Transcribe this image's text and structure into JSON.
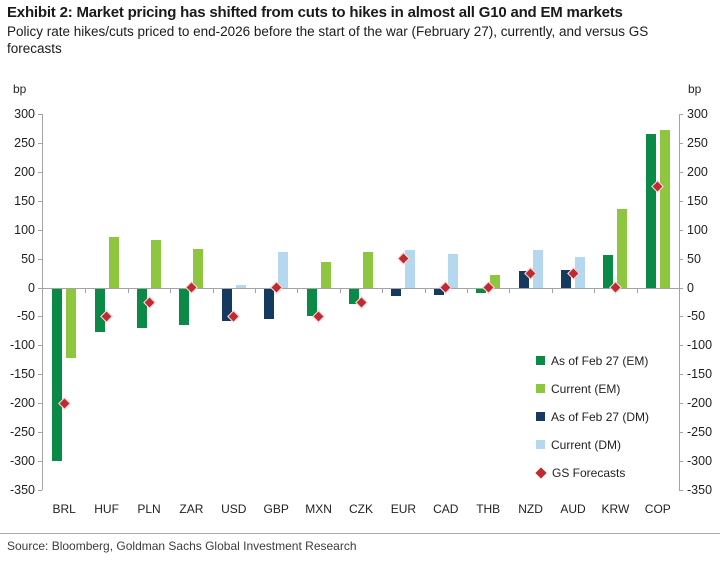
{
  "header": {
    "title": "Exhibit 2: Market pricing has shifted from cuts to hikes in almost all G10 and EM markets",
    "subtitle": "Policy rate hikes/cuts priced to end-2026 before the start of the war (February 27), currently, and versus GS forecasts"
  },
  "footer": {
    "source": "Source: Bloomberg, Goldman Sachs Global Investment Research"
  },
  "colors": {
    "em_feb27": "#0a8a46",
    "em_current": "#8ec63f",
    "dm_feb27": "#163a5f",
    "dm_current": "#b5d8ee",
    "gs_forecast": "#c02b31",
    "axis": "#a3a3a3",
    "text": "#1f1f1f"
  },
  "chart_data": {
    "type": "bar",
    "unit": "bp",
    "title": "Policy rate hikes/cuts priced to end-2026 (bp)",
    "ylim": [
      -350,
      300
    ],
    "ytick_step": 50,
    "grid": false,
    "legend_position": "inside-right-bottom",
    "categories": [
      "BRL",
      "HUF",
      "PLN",
      "ZAR",
      "USD",
      "GBP",
      "MXN",
      "CZK",
      "EUR",
      "CAD",
      "THB",
      "NZD",
      "AUD",
      "KRW",
      "COP"
    ],
    "category_market": [
      "EM",
      "EM",
      "EM",
      "EM",
      "DM",
      "DM",
      "EM",
      "EM",
      "DM",
      "DM",
      "EM",
      "DM",
      "DM",
      "EM",
      "EM"
    ],
    "series": [
      {
        "name": "As of Feb 27 (EM)",
        "type": "bar",
        "slot": "left",
        "color": "#0a8a46",
        "values": [
          -300,
          -77,
          -70,
          -65,
          null,
          null,
          -49,
          -29,
          null,
          null,
          -9,
          null,
          null,
          56,
          265
        ]
      },
      {
        "name": "Current (EM)",
        "type": "bar",
        "slot": "right",
        "color": "#8ec63f",
        "values": [
          -122,
          87,
          82,
          67,
          null,
          null,
          45,
          62,
          null,
          null,
          22,
          null,
          null,
          135,
          272
        ]
      },
      {
        "name": "As of Feb 27 (DM)",
        "type": "bar",
        "slot": "left",
        "color": "#163a5f",
        "values": [
          null,
          null,
          null,
          null,
          -57,
          -55,
          null,
          null,
          -15,
          -13,
          null,
          29,
          30,
          null,
          null
        ]
      },
      {
        "name": "Current (DM)",
        "type": "bar",
        "slot": "right",
        "color": "#b5d8ee",
        "values": [
          null,
          null,
          null,
          null,
          4,
          61,
          null,
          null,
          65,
          58,
          null,
          65,
          52,
          null,
          null
        ]
      },
      {
        "name": "GS Forecasts",
        "type": "diamond",
        "color": "#c02b31",
        "values": [
          -200,
          -50,
          -25,
          0,
          -50,
          0,
          -50,
          -25,
          50,
          0,
          0,
          25,
          25,
          0,
          175
        ]
      }
    ]
  }
}
